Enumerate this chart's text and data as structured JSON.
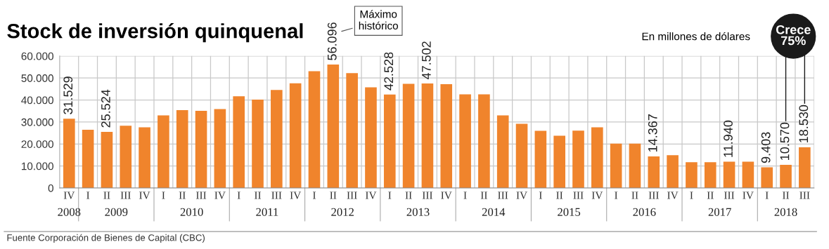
{
  "chart_data": {
    "type": "bar",
    "title": "Stock de inversión quinquenal",
    "subtitle": "En millones de dólares",
    "categories": [
      "IV",
      "I",
      "II",
      "III",
      "IV",
      "I",
      "II",
      "III",
      "IV",
      "I",
      "II",
      "III",
      "IV",
      "I",
      "II",
      "III",
      "IV",
      "I",
      "II",
      "III",
      "IV",
      "I",
      "II",
      "III",
      "IV",
      "I",
      "II",
      "III",
      "IV",
      "I",
      "II",
      "III",
      "IV",
      "I",
      "II",
      "III",
      "IV",
      "I",
      "II",
      "III"
    ],
    "values": [
      31529,
      26500,
      25524,
      28300,
      27600,
      33000,
      35400,
      35100,
      35900,
      41700,
      40200,
      44600,
      47600,
      53100,
      56096,
      52200,
      45800,
      42528,
      47400,
      47502,
      47200,
      42600,
      42600,
      33000,
      29200,
      26000,
      23800,
      26100,
      27600,
      20200,
      20200,
      14367,
      14900,
      11700,
      11700,
      11940,
      12000,
      9403,
      10570,
      18530
    ],
    "value_labels": [
      "31.529",
      null,
      "25.524",
      null,
      null,
      null,
      null,
      null,
      null,
      null,
      null,
      null,
      null,
      null,
      "56.096",
      null,
      null,
      "42.528",
      null,
      "47.502",
      null,
      null,
      null,
      null,
      null,
      null,
      null,
      null,
      null,
      null,
      null,
      "14.367",
      null,
      null,
      null,
      "11.940",
      null,
      "9.403",
      "10.570",
      "18.530"
    ],
    "color": "#f0842c",
    "ylim": [
      0,
      60000
    ],
    "yticks": [
      {
        "value": 0,
        "label": "0"
      },
      {
        "value": 10000,
        "label": "10.000"
      },
      {
        "value": 20000,
        "label": "20.000"
      },
      {
        "value": 30000,
        "label": "30.000"
      },
      {
        "value": 40000,
        "label": "40.000"
      },
      {
        "value": 50000,
        "label": "50.000"
      },
      {
        "value": 60000,
        "label": "60.000"
      }
    ],
    "grid": true,
    "annotations": [
      "Máximo\nhistórico",
      "Crece\n75%",
      "Fuente Corporación de Bienes de Capital (CBC)",
      "2008",
      "2009",
      "2010",
      "2011",
      "2012",
      "2013",
      "2014",
      "2015",
      "2016",
      "2017",
      "2018"
    ]
  }
}
